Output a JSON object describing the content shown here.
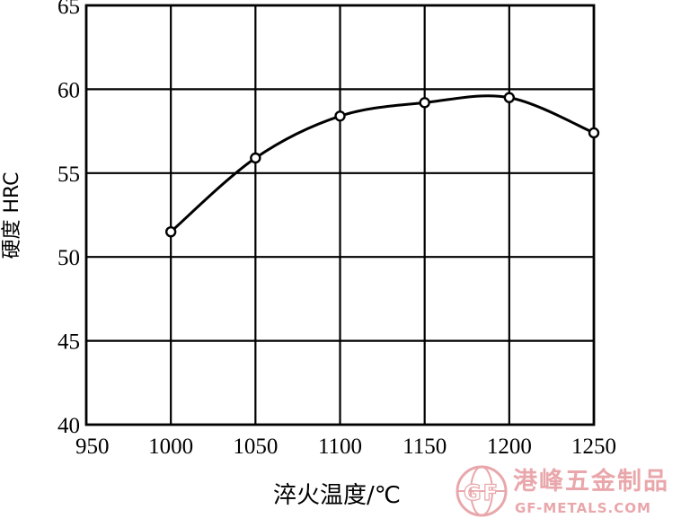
{
  "chart_data": {
    "type": "line",
    "xlabel": "淬火温度/℃",
    "ylabel": "硬度 HRC",
    "xlim": [
      950,
      1250
    ],
    "ylim": [
      40,
      65
    ],
    "xticks": [
      "950",
      "1000",
      "1050",
      "1100",
      "1150",
      "1200",
      "1250"
    ],
    "yticks": [
      "40",
      "45",
      "50",
      "55",
      "60",
      "65"
    ],
    "grid": true,
    "series": [
      {
        "x": [
          1000,
          1050,
          1100,
          1150,
          1200,
          1250
        ],
        "values": [
          51.5,
          55.9,
          58.4,
          59.2,
          59.5,
          57.4
        ]
      }
    ]
  },
  "watermark": {
    "cn_text": "港峰五金制品",
    "en_text": "GF-METALS.COM",
    "logo_text": "GF",
    "color": "#e9a7ab"
  }
}
